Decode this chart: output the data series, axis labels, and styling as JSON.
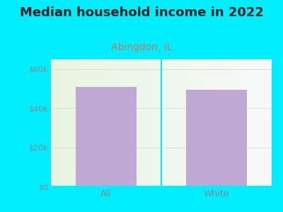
{
  "title": "Median household income in 2022",
  "subtitle": "Abingdon, IL",
  "categories": [
    "All",
    "White"
  ],
  "values": [
    51000,
    49500
  ],
  "bar_color": "#c0a8d5",
  "background_outer": "#00eeff",
  "title_fontsize": 13,
  "subtitle_fontsize": 10,
  "title_color": "#222222",
  "subtitle_color": "#cc7755",
  "tick_label_color": "#888888",
  "yticks": [
    0,
    20000,
    40000,
    60000
  ],
  "ytick_labels": [
    "$0",
    "$20k",
    "$40k",
    "$60k"
  ],
  "ylim": [
    0,
    65000
  ],
  "grid_color": "#dddddd",
  "plot_bg_left": "#e8f5e0",
  "plot_bg_right": "#f5f5f0"
}
